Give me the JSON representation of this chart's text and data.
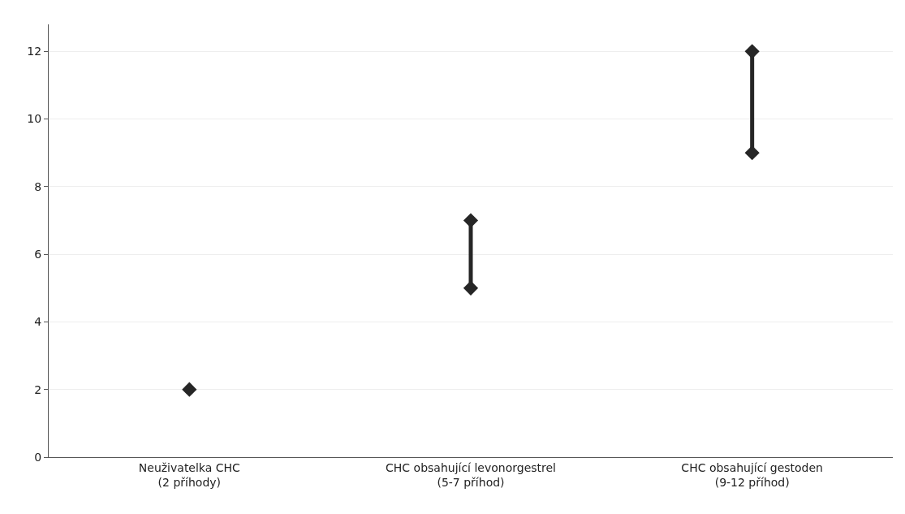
{
  "chart_data": {
    "type": "scatter",
    "categories": [
      "Neuživatelka CHC\n(2 příhody)",
      "CHC obsahující levonorgestrel\n(5-7 příhod)",
      "CHC obsahující gestoden\n(9-12 příhod)"
    ],
    "series": [
      {
        "type": "line",
        "x": [
          "CHC obsahující levonorgestrel\n(5-7 příhod)",
          "CHC obsahující levonorgestrel\n(5-7 příhod)"
        ],
        "values": [
          5,
          7
        ],
        "color": "#262626",
        "marker": "none"
      },
      {
        "type": "line",
        "x": [
          "CHC obsahující gestoden\n(9-12 příhod)",
          "CHC obsahující gestoden\n(9-12 příhod)"
        ],
        "values": [
          9,
          12
        ],
        "color": "#262626",
        "marker": "none"
      },
      {
        "values": [
          2,
          5,
          9
        ],
        "color": "#262626"
      },
      {
        "values": [
          null,
          7,
          12
        ],
        "color": "#262626"
      }
    ],
    "marker": "diamond",
    "ylim": [
      0,
      12.8
    ],
    "yticks": [
      0,
      2,
      4,
      6,
      8,
      10,
      12
    ],
    "grid": "y"
  }
}
